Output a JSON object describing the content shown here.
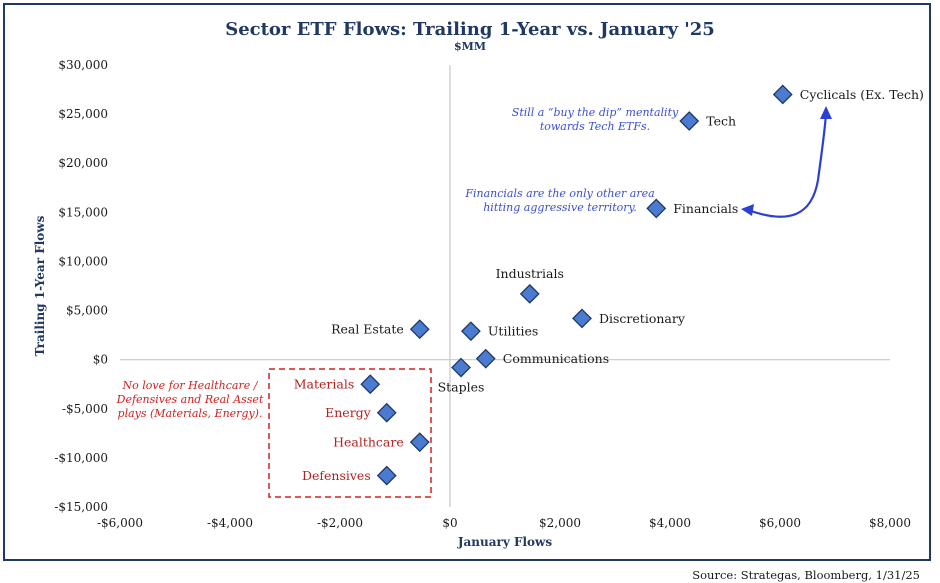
{
  "chart_data": {
    "type": "scatter",
    "title": "Sector ETF Flows: Trailing 1-Year vs. January '25",
    "subtitle": "$MM",
    "xlabel": "January Flows",
    "ylabel": "Trailing 1-Year Flows",
    "xlim": [
      -6000,
      8000
    ],
    "ylim": [
      -15000,
      30000
    ],
    "x_ticks": [
      {
        "v": -6000,
        "label": "-$6,000"
      },
      {
        "v": -4000,
        "label": "-$4,000"
      },
      {
        "v": -2000,
        "label": "-$2,000"
      },
      {
        "v": 0,
        "label": "$0"
      },
      {
        "v": 2000,
        "label": "$2,000"
      },
      {
        "v": 4000,
        "label": "$4,000"
      },
      {
        "v": 6000,
        "label": "$6,000"
      },
      {
        "v": 8000,
        "label": "$8,000"
      }
    ],
    "y_ticks": [
      {
        "v": 30000,
        "label": "$30,000"
      },
      {
        "v": 25000,
        "label": "$25,000"
      },
      {
        "v": 20000,
        "label": "$20,000"
      },
      {
        "v": 15000,
        "label": "$15,000"
      },
      {
        "v": 10000,
        "label": "$10,000"
      },
      {
        "v": 5000,
        "label": "$5,000"
      },
      {
        "v": 0,
        "label": "$0"
      },
      {
        "v": -5000,
        "label": "-$5,000"
      },
      {
        "v": -10000,
        "label": "-$10,000"
      },
      {
        "v": -15000,
        "label": "-$15,000"
      }
    ],
    "points": [
      {
        "label": "Cyclicals (Ex. Tech)",
        "x": 6050,
        "y": 27000,
        "color": "#1a1a1a",
        "pos": "right"
      },
      {
        "label": "Tech",
        "x": 4350,
        "y": 24300,
        "color": "#1a1a1a",
        "pos": "right"
      },
      {
        "label": "Financials",
        "x": 3750,
        "y": 15400,
        "color": "#1a1a1a",
        "pos": "right"
      },
      {
        "label": "Industrials",
        "x": 1450,
        "y": 6700,
        "color": "#1a1a1a",
        "pos": "above"
      },
      {
        "label": "Discretionary",
        "x": 2400,
        "y": 4200,
        "color": "#1a1a1a",
        "pos": "right"
      },
      {
        "label": "Real Estate",
        "x": -550,
        "y": 3100,
        "color": "#1a1a1a",
        "pos": "left"
      },
      {
        "label": "Utilities",
        "x": 380,
        "y": 2900,
        "color": "#1a1a1a",
        "pos": "right"
      },
      {
        "label": "Communications",
        "x": 650,
        "y": 100,
        "color": "#1a1a1a",
        "pos": "right"
      },
      {
        "label": "Staples",
        "x": 200,
        "y": -800,
        "color": "#1a1a1a",
        "pos": "below"
      },
      {
        "label": "Materials",
        "x": -1450,
        "y": -2500,
        "color": "#b22222",
        "pos": "left"
      },
      {
        "label": "Energy",
        "x": -1150,
        "y": -5400,
        "color": "#b22222",
        "pos": "left"
      },
      {
        "label": "Healthcare",
        "x": -550,
        "y": -8400,
        "color": "#b22222",
        "pos": "left"
      },
      {
        "label": "Defensives",
        "x": -1150,
        "y": -11800,
        "color": "#b22222",
        "pos": "left"
      }
    ],
    "annotations": [
      {
        "lines": [
          "Still a “buy the dip” mentality",
          "towards Tech ETFs."
        ],
        "color": "#3a4fd8"
      },
      {
        "lines": [
          "Financials are the only other area",
          "hitting aggressive territory."
        ],
        "color": "#3a4fd8"
      },
      {
        "lines": [
          "No love for Healthcare /",
          "Defensives and Real Asset",
          "plays (Materials, Energy)."
        ],
        "color": "#d42020"
      }
    ],
    "grid": false,
    "marker": "diamond",
    "marker_fill": "#4a7bd0",
    "marker_stroke": "#1f3864"
  },
  "source": "Source: Strategas, Bloomberg, 1/31/25"
}
